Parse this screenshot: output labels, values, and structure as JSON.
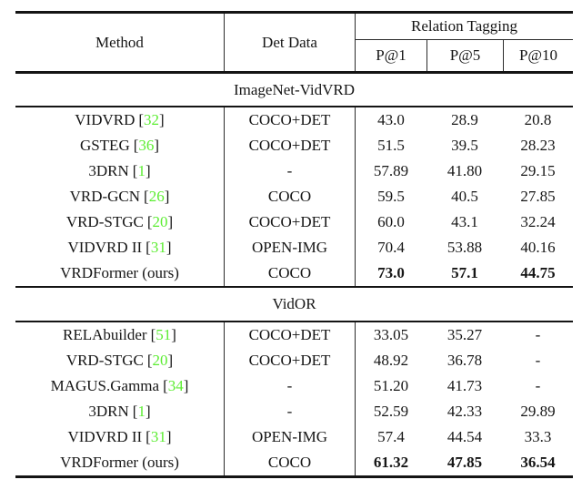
{
  "table": {
    "header": {
      "method": "Method",
      "det_data": "Det Data",
      "relation_tagging": "Relation Tagging",
      "metrics": [
        "P@1",
        "P@5",
        "P@10"
      ]
    },
    "punct": {
      "open": "[",
      "close": "]"
    },
    "colors": {
      "citation_green": "#5ced32",
      "text": "#161616",
      "rule": "#141414"
    },
    "sections": [
      {
        "title": "ImageNet-VidVRD",
        "rows": [
          {
            "method": "VIDVRD",
            "cite": "32",
            "det": "COCO+DET",
            "p1": "43.0",
            "p5": "28.9",
            "p10": "20.8"
          },
          {
            "method": "GSTEG",
            "cite": "36",
            "det": "COCO+DET",
            "p1": "51.5",
            "p5": "39.5",
            "p10": "28.23"
          },
          {
            "method": "3DRN",
            "cite": "1",
            "det": "-",
            "p1": "57.89",
            "p5": "41.80",
            "p10": "29.15"
          },
          {
            "method": "VRD-GCN",
            "cite": "26",
            "det": "COCO",
            "p1": "59.5",
            "p5": "40.5",
            "p10": "27.85"
          },
          {
            "method": "VRD-STGC",
            "cite": "20",
            "det": "COCO+DET",
            "p1": "60.0",
            "p5": "43.1",
            "p10": "32.24"
          },
          {
            "method": "VIDVRD II",
            "cite": "31",
            "det": "OPEN-IMG",
            "p1": "70.4",
            "p5": "53.88",
            "p10": "40.16"
          },
          {
            "method": "VRDFormer (ours)",
            "cite": "",
            "det": "COCO",
            "p1": "73.0",
            "p5": "57.1",
            "p10": "44.75"
          }
        ]
      },
      {
        "title": "VidOR",
        "rows": [
          {
            "method": "RELAbuilder",
            "cite": "51",
            "det": "COCO+DET",
            "p1": "33.05",
            "p5": "35.27",
            "p10": "-"
          },
          {
            "method": "VRD-STGC",
            "cite": "20",
            "det": "COCO+DET",
            "p1": "48.92",
            "p5": "36.78",
            "p10": "-"
          },
          {
            "method": "MAGUS.Gamma",
            "cite": "34",
            "det": "-",
            "p1": "51.20",
            "p5": "41.73",
            "p10": "-"
          },
          {
            "method": "3DRN",
            "cite": "1",
            "det": "-",
            "p1": "52.59",
            "p5": "42.33",
            "p10": "29.89"
          },
          {
            "method": "VIDVRD II",
            "cite": "31",
            "det": "OPEN-IMG",
            "p1": "57.4",
            "p5": "44.54",
            "p10": "33.3"
          },
          {
            "method": "VRDFormer (ours)",
            "cite": "",
            "det": "COCO",
            "p1": "61.32",
            "p5": "47.85",
            "p10": "36.54"
          }
        ]
      }
    ]
  }
}
